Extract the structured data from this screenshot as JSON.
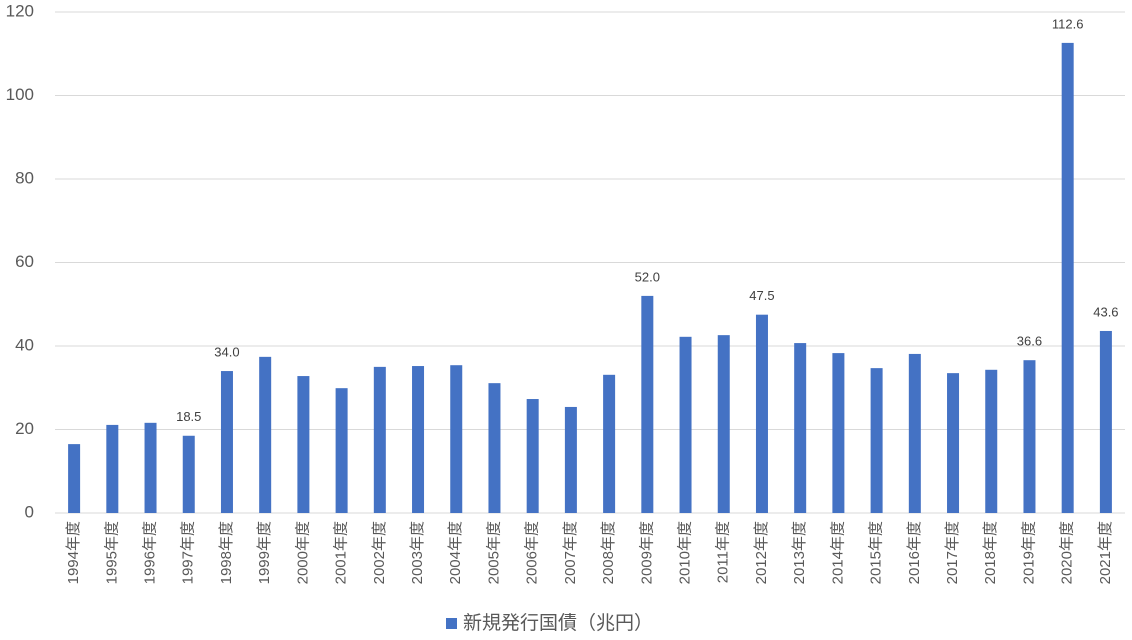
{
  "chart_data": {
    "type": "bar",
    "categories": [
      "1994年度",
      "1995年度",
      "1996年度",
      "1997年度",
      "1998年度",
      "1999年度",
      "2000年度",
      "2001年度",
      "2002年度",
      "2003年度",
      "2004年度",
      "2005年度",
      "2006年度",
      "2007年度",
      "2008年度",
      "2009年度",
      "2010年度",
      "2011年度",
      "2012年度",
      "2013年度",
      "2014年度",
      "2015年度",
      "2016年度",
      "2017年度",
      "2018年度",
      "2019年度",
      "2020年度",
      "2021年度"
    ],
    "series": [
      {
        "name": "新規発行国債（兆円）",
        "color": "#4472c4",
        "values": [
          16.5,
          21.1,
          21.6,
          18.5,
          34.0,
          37.4,
          32.8,
          29.9,
          35.0,
          35.2,
          35.4,
          31.1,
          27.3,
          25.4,
          33.1,
          52.0,
          42.2,
          42.6,
          47.5,
          40.7,
          38.3,
          34.7,
          38.1,
          33.5,
          34.3,
          36.6,
          112.6,
          43.6
        ],
        "value_labels": [
          null,
          null,
          null,
          "18.5",
          "34.0",
          null,
          null,
          null,
          null,
          null,
          null,
          null,
          null,
          null,
          null,
          "52.0",
          null,
          null,
          "47.5",
          null,
          null,
          null,
          null,
          null,
          null,
          "36.6",
          "112.6",
          "43.6"
        ]
      }
    ],
    "ylim": [
      0,
      120
    ],
    "yticks": [
      0,
      20,
      40,
      60,
      80,
      100,
      120
    ],
    "grid": true,
    "legend": "bottom"
  }
}
